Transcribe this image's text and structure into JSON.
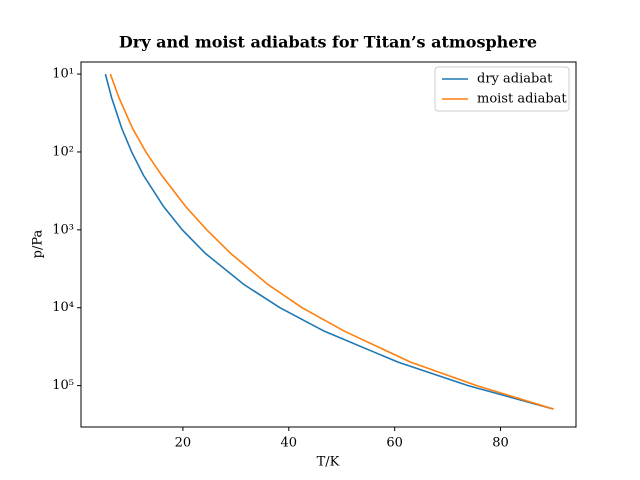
{
  "chart_data": {
    "type": "line",
    "title": "Dry and moist adiabats for Titan’s atmosphere",
    "xlabel": "T/K",
    "ylabel": "p/Pa",
    "xlim": [
      0.75,
      94.25
    ],
    "xticks": [
      20,
      40,
      60,
      80
    ],
    "ylim": [
      7,
      340000
    ],
    "yscale": "log",
    "y_inverted": true,
    "yticks": [
      {
        "value": 10,
        "label": "10¹"
      },
      {
        "value": 100,
        "label": "10²"
      },
      {
        "value": 1000,
        "label": "10³"
      },
      {
        "value": 10000,
        "label": "10⁴"
      },
      {
        "value": 100000,
        "label": "10⁵"
      }
    ],
    "legend": "upper right",
    "series": [
      {
        "name": "dry adiabat",
        "color": "#1f77b4",
        "x": [
          5.36,
          6.52,
          8.46,
          10.32,
          12.56,
          16.33,
          19.88,
          24.22,
          31.46,
          38.32,
          46.69,
          60.63,
          73.87,
          90
        ],
        "values": [
          10,
          20,
          50,
          100,
          200,
          500,
          1000,
          2000,
          5000,
          10000,
          20000,
          50000,
          100000,
          200000
        ]
      },
      {
        "name": "moist adiabat",
        "color": "#ff7f0e",
        "x": [
          6.3,
          7.9,
          10.5,
          13,
          16,
          20.5,
          24.5,
          29,
          36,
          42.5,
          50.5,
          63,
          75.5,
          90
        ],
        "values": [
          10,
          20,
          50,
          100,
          200,
          500,
          1000,
          2000,
          5000,
          10000,
          20000,
          50000,
          100000,
          200000
        ]
      }
    ]
  }
}
